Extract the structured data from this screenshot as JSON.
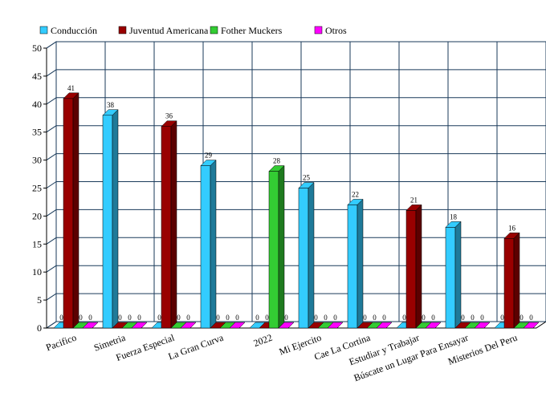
{
  "chart_data": {
    "type": "bar3d",
    "categories": [
      "Pacifico",
      "Simetria",
      "Fuerza Especial",
      "La Gran Curva",
      "2022",
      "Mi Ejercito",
      "Cae La Cortina",
      "Estudiar y Trabajar",
      "Búscate un Lugar Para Ensayar",
      "Misterios Del Peru"
    ],
    "series": [
      {
        "name": "Conducción",
        "color": "#33ccff",
        "values": [
          0,
          38,
          0,
          29,
          0,
          25,
          22,
          0,
          18,
          0
        ]
      },
      {
        "name": "Juventud Americana",
        "color": "#990000",
        "values": [
          41,
          0,
          36,
          0,
          0,
          0,
          0,
          21,
          0,
          16
        ]
      },
      {
        "name": "Fother Muckers",
        "color": "#33cc33",
        "values": [
          0,
          0,
          0,
          0,
          28,
          0,
          0,
          0,
          0,
          0
        ]
      },
      {
        "name": "Otros",
        "color": "#ff00ff",
        "values": [
          0,
          0,
          0,
          0,
          0,
          0,
          0,
          0,
          0,
          0
        ]
      }
    ],
    "ylim": [
      0,
      50
    ],
    "yticks": [
      0,
      5,
      10,
      15,
      20,
      25,
      30,
      35,
      40,
      45,
      50
    ],
    "grid": true,
    "legend": "top"
  }
}
